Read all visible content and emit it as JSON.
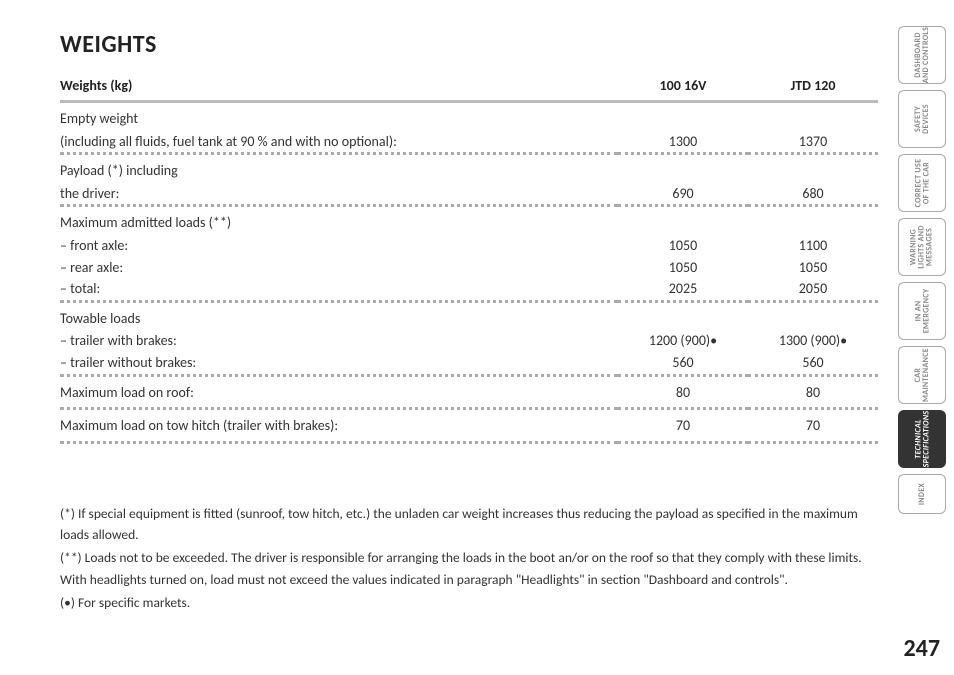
{
  "heading": "WEIGHTS",
  "table": {
    "header": {
      "label": "Weights (kg)",
      "col2": "100 16V",
      "col3": "JTD 120"
    },
    "rows": [
      {
        "type": "group",
        "lines": [
          {
            "label": "Empty weight",
            "v1": "",
            "v2": ""
          },
          {
            "label": "(including all fluids, fuel tank at 90 % and with no optional):",
            "v1": "1300",
            "v2": "1370"
          }
        ]
      },
      {
        "type": "group",
        "lines": [
          {
            "label": " Payload (*) including",
            "v1": "",
            "v2": ""
          },
          {
            "label": "the driver:",
            "v1": "690",
            "v2": "680"
          }
        ]
      },
      {
        "type": "group",
        "lines": [
          {
            "label": "Maximum admitted loads (**)",
            "v1": "",
            "v2": ""
          },
          {
            "label": "– front axle:",
            "v1": "1050",
            "v2": "1100"
          },
          {
            "label": "– rear axle:",
            "v1": "1050",
            "v2": "1050"
          },
          {
            "label": "– total:",
            "v1": "2025",
            "v2": "2050"
          }
        ]
      },
      {
        "type": "group",
        "lines": [
          {
            "label": "Towable loads",
            "v1": "",
            "v2": ""
          },
          {
            "label": "– trailer with brakes:",
            "v1": "1200 (900)•",
            "v2": "1300 (900)•"
          },
          {
            "label": "– trailer without brakes:",
            "v1": "560",
            "v2": "560"
          }
        ]
      },
      {
        "type": "single",
        "label": "Maximum load on roof:",
        "v1": "80",
        "v2": "80"
      },
      {
        "type": "single",
        "label": "Maximum load on tow hitch (trailer with brakes):",
        "v1": "70",
        "v2": "70"
      }
    ]
  },
  "footnotes": [
    "(*) If special equipment is fitted (sunroof, tow hitch, etc.) the unladen car weight increases thus reducing the payload as specified in the maximum loads allowed.",
    "(**) Loads not to be exceeded. The driver is responsible for arranging the loads in the boot an/or on the roof so that they comply with these limits.",
    "With headlights turned on, load must not exceed the values indicated in paragraph \"Headlights\" in section \"Dashboard and controls\".",
    "(•) For specific markets."
  ],
  "tabs": [
    {
      "label": "DASHBOARD<br>AND CONTROLS",
      "active": false
    },
    {
      "label": "SAFETY<br>DEVICES",
      "active": false
    },
    {
      "label": "CORRECT USE<br>OF THE CAR",
      "active": false
    },
    {
      "label": "WARNING<br>LIGHTS AND<br>MESSAGES",
      "active": false
    },
    {
      "label": "IN AN<br>EMERGENCY",
      "active": false
    },
    {
      "label": "CAR<br>MAINTENANCE",
      "active": false
    },
    {
      "label": "TECHNICAL<br>SPECIFICATIONS",
      "active": true
    },
    {
      "label": "INDEX",
      "active": false,
      "idx": true
    }
  ],
  "pageNumber": "247"
}
